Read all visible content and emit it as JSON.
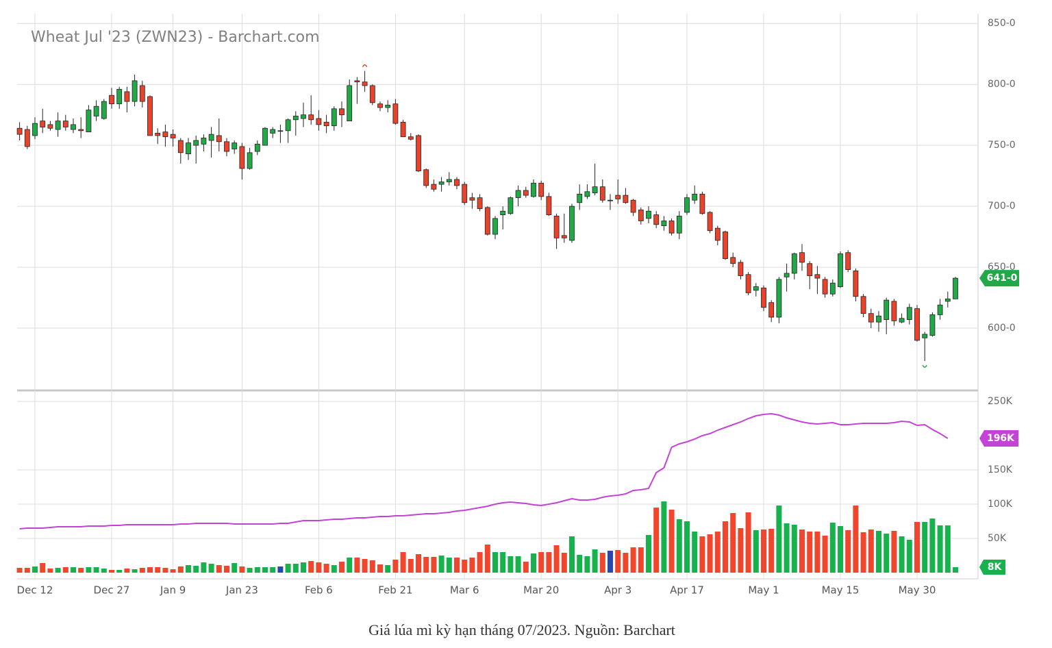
{
  "chart_data": [
    {
      "type": "candlestick",
      "title": "Wheat Jul '23 (ZWN23) - Barchart.com",
      "categories": [
        null,
        null,
        "Dec 12",
        null,
        null,
        null,
        null,
        null,
        null,
        null,
        null,
        null,
        "Dec 27",
        null,
        null,
        null,
        null,
        null,
        null,
        null,
        "Jan 9",
        null,
        null,
        null,
        null,
        null,
        null,
        null,
        null,
        "Jan 23",
        null,
        null,
        null,
        null,
        null,
        null,
        null,
        null,
        null,
        "Feb 6",
        null,
        null,
        null,
        null,
        null,
        null,
        null,
        null,
        null,
        "Feb 21",
        null,
        null,
        null,
        null,
        null,
        null,
        null,
        null,
        "Mar 6",
        null,
        null,
        null,
        null,
        null,
        null,
        null,
        null,
        null,
        "Mar 20",
        null,
        null,
        null,
        null,
        null,
        null,
        null,
        null,
        null,
        "Apr 3",
        null,
        null,
        null,
        null,
        null,
        null,
        null,
        null,
        "Apr 17",
        null,
        null,
        null,
        null,
        null,
        null,
        null,
        null,
        null,
        "May 1",
        null,
        null,
        null,
        null,
        null,
        null,
        null,
        null,
        null,
        "May 15",
        null,
        null,
        null,
        null,
        null,
        null,
        null,
        null,
        null,
        "May 30",
        null,
        null,
        null,
        null,
        null
      ],
      "open": [
        764,
        763,
        758,
        770,
        767,
        763,
        770,
        763,
        763,
        761,
        774,
        772,
        791,
        784,
        794,
        786,
        799,
        790,
        760,
        761,
        759,
        754,
        743,
        750,
        751,
        754,
        758,
        753,
        747,
        749,
        731,
        745,
        750,
        760,
        762,
        762,
        771,
        772,
        775,
        772,
        769,
        766,
        780,
        770,
        803,
        802,
        799,
        784,
        781,
        784,
        769,
        757,
        758,
        730,
        718,
        718,
        720,
        722,
        718,
        707,
        707,
        699,
        677,
        693,
        694,
        707,
        713,
        708,
        719,
        708,
        692,
        676,
        672,
        703,
        708,
        711,
        716,
        705,
        709,
        709,
        705,
        697,
        690,
        693,
        684,
        688,
        678,
        695,
        705,
        710,
        695,
        682,
        679,
        658,
        654,
        644,
        631,
        633,
        621,
        609,
        642,
        645,
        662,
        653,
        644,
        640,
        628,
        634,
        662,
        647,
        626,
        612,
        605,
        607,
        622,
        605,
        607,
        616,
        592,
        594,
        611,
        622,
        624
      ],
      "high": [
        769,
        766,
        773,
        780,
        770,
        777,
        775,
        772,
        773,
        783,
        787,
        788,
        797,
        798,
        798,
        808,
        803,
        791,
        764,
        767,
        763,
        756,
        756,
        758,
        759,
        765,
        772,
        756,
        754,
        752,
        748,
        754,
        765,
        765,
        767,
        772,
        778,
        785,
        791,
        779,
        775,
        782,
        786,
        804,
        806,
        811,
        800,
        786,
        787,
        788,
        771,
        760,
        759,
        731,
        722,
        724,
        728,
        724,
        720,
        711,
        710,
        700,
        692,
        700,
        708,
        717,
        716,
        722,
        721,
        711,
        694,
        694,
        702,
        718,
        718,
        735,
        722,
        710,
        722,
        715,
        706,
        699,
        700,
        696,
        692,
        690,
        696,
        710,
        717,
        712,
        696,
        684,
        680,
        662,
        656,
        646,
        637,
        635,
        623,
        642,
        653,
        662,
        669,
        655,
        651,
        642,
        640,
        663,
        664,
        649,
        628,
        616,
        614,
        625,
        624,
        612,
        620,
        619,
        597,
        613,
        624,
        630,
        642
      ],
      "low": [
        754,
        747,
        755,
        760,
        762,
        757,
        762,
        760,
        756,
        761,
        770,
        771,
        780,
        780,
        777,
        782,
        781,
        758,
        751,
        749,
        749,
        735,
        738,
        735,
        745,
        740,
        745,
        741,
        743,
        722,
        730,
        742,
        750,
        756,
        752,
        752,
        758,
        765,
        767,
        762,
        760,
        762,
        765,
        770,
        784,
        794,
        783,
        778,
        777,
        767,
        757,
        754,
        728,
        715,
        712,
        712,
        717,
        714,
        701,
        698,
        696,
        676,
        673,
        681,
        693,
        700,
        707,
        707,
        705,
        692,
        665,
        670,
        670,
        697,
        706,
        709,
        703,
        697,
        702,
        702,
        692,
        685,
        686,
        682,
        680,
        676,
        673,
        693,
        702,
        693,
        678,
        668,
        656,
        650,
        640,
        627,
        626,
        614,
        605,
        604,
        630,
        640,
        647,
        632,
        628,
        625,
        626,
        633,
        646,
        622,
        609,
        600,
        597,
        595,
        602,
        604,
        603,
        589,
        573,
        593,
        607,
        617,
        624
      ],
      "close": [
        759,
        749,
        768,
        765,
        764,
        770,
        765,
        767,
        762,
        779,
        782,
        786,
        784,
        796,
        786,
        803,
        786,
        758,
        758,
        757,
        756,
        744,
        752,
        754,
        756,
        759,
        753,
        745,
        752,
        731,
        744,
        751,
        764,
        763,
        762,
        771,
        774,
        775,
        771,
        767,
        766,
        780,
        775,
        799,
        802,
        799,
        785,
        781,
        783,
        768,
        757,
        755,
        729,
        717,
        714,
        720,
        722,
        717,
        703,
        705,
        698,
        677,
        690,
        696,
        707,
        713,
        709,
        719,
        708,
        693,
        674,
        674,
        700,
        710,
        712,
        716,
        705,
        705,
        706,
        703,
        695,
        688,
        696,
        685,
        688,
        678,
        692,
        707,
        710,
        694,
        680,
        672,
        657,
        653,
        643,
        629,
        634,
        617,
        609,
        640,
        645,
        661,
        654,
        643,
        641,
        628,
        637,
        661,
        648,
        626,
        612,
        605,
        610,
        623,
        606,
        608,
        617,
        590,
        595,
        611,
        619,
        624,
        641
      ],
      "up_color": "#22a847",
      "down_color": "#e8432c",
      "last_label": "641-0",
      "ylim": [
        550,
        858
      ],
      "yticks": [
        {
          "value": 600,
          "label": "600-0"
        },
        {
          "value": 650,
          "label": "650-0"
        },
        {
          "value": 700,
          "label": "700-0"
        },
        {
          "value": 750,
          "label": "750-0"
        },
        {
          "value": 800,
          "label": "800-0"
        },
        {
          "value": 850,
          "label": "850-0"
        }
      ],
      "grid": true
    },
    {
      "type": "bar",
      "values": [
        7000,
        7000,
        9000,
        14000,
        6000,
        7000,
        8000,
        8000,
        7000,
        8000,
        8000,
        6000,
        4000,
        4000,
        6000,
        5000,
        7000,
        8000,
        8000,
        7000,
        5000,
        9000,
        11000,
        10000,
        15000,
        13000,
        11000,
        10000,
        14000,
        9000,
        7000,
        8000,
        8000,
        8000,
        9000,
        13000,
        13000,
        15000,
        17000,
        15000,
        13000,
        11000,
        16000,
        22000,
        22000,
        20000,
        18000,
        12000,
        11000,
        19000,
        30000,
        20000,
        27000,
        23000,
        23000,
        25000,
        22000,
        22000,
        19000,
        22000,
        30000,
        41000,
        30000,
        30000,
        24000,
        24000,
        16000,
        28000,
        30000,
        30000,
        40000,
        29000,
        53000,
        26000,
        24000,
        34000,
        29000,
        32000,
        33000,
        29000,
        37000,
        37000,
        55000,
        95000,
        104000,
        92000,
        78000,
        75000,
        60000,
        53000,
        56000,
        60000,
        75000,
        87000,
        65000,
        88000,
        62000,
        63000,
        64000,
        98000,
        72000,
        70000,
        63000,
        60000,
        60000,
        54000,
        73000,
        68000,
        62000,
        98000,
        59000,
        63000,
        61000,
        57000,
        61000,
        53000,
        48000,
        74000,
        74000,
        79000,
        69000,
        69000,
        8000
      ],
      "colors": {
        "up": "#17b24e",
        "down": "#f0462d",
        "flat": "#2848b4"
      },
      "last_label": "8K",
      "line": {
        "color": "#c443d6",
        "last_label": "196K",
        "values": [
          64000,
          65000,
          65000,
          65000,
          66000,
          67000,
          67000,
          67000,
          67000,
          68000,
          68000,
          68000,
          69000,
          69000,
          70000,
          70000,
          70000,
          70000,
          70000,
          70000,
          70000,
          71000,
          71000,
          72000,
          72000,
          72000,
          72000,
          72000,
          71000,
          71000,
          71000,
          71000,
          71000,
          71000,
          72000,
          72000,
          74000,
          76000,
          76000,
          76000,
          77000,
          78000,
          78000,
          79000,
          80000,
          80000,
          81000,
          82000,
          82000,
          83000,
          83000,
          84000,
          85000,
          86000,
          86000,
          87000,
          88000,
          90000,
          91000,
          93000,
          95000,
          97000,
          100000,
          102000,
          103000,
          102000,
          101000,
          99000,
          98000,
          100000,
          102000,
          105000,
          108000,
          106000,
          106000,
          107000,
          110000,
          112000,
          113000,
          115000,
          120000,
          121000,
          123000,
          146000,
          153000,
          183000,
          188000,
          191000,
          195000,
          200000,
          203000,
          208000,
          212000,
          216000,
          220000,
          225000,
          229000,
          231000,
          232000,
          230000,
          226000,
          223000,
          220000,
          218000,
          217000,
          218000,
          219000,
          216000,
          216000,
          217000,
          218000,
          218000,
          218000,
          218000,
          219000,
          221000,
          220000,
          215000,
          216000,
          209000,
          203000,
          196000,
          null
        ]
      },
      "ylim": [
        -9000,
        261000
      ],
      "yticks": [
        {
          "value": 50000,
          "label": "50K"
        },
        {
          "value": 100000,
          "label": "100K"
        },
        {
          "value": 150000,
          "label": "150K"
        },
        {
          "value": 250000,
          "label": "250K"
        }
      ],
      "grid": true
    }
  ],
  "caption": "Giá lúa mì kỳ hạn tháng 07/2023. Nguồn: Barchart"
}
